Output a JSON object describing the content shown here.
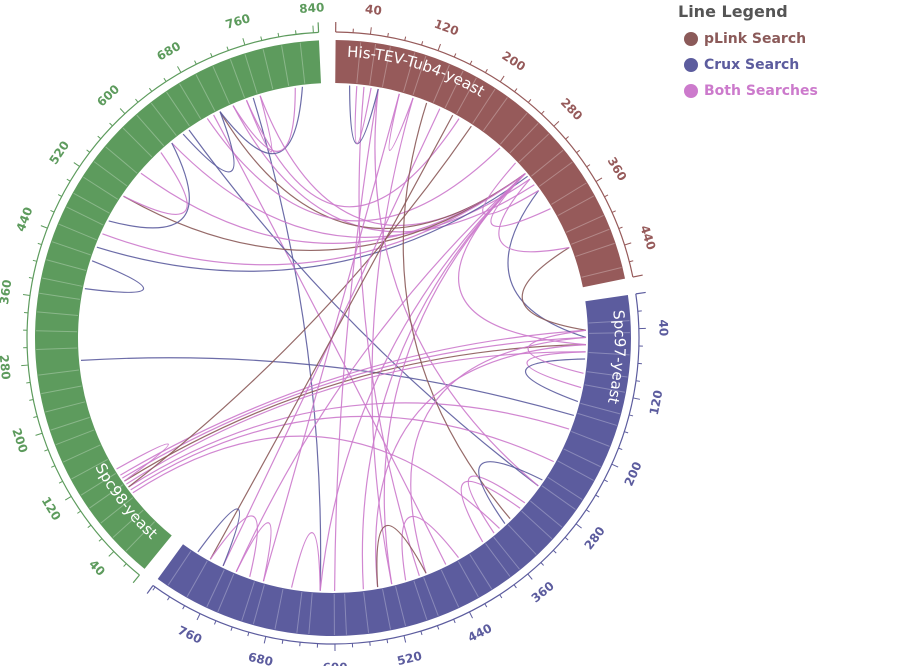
{
  "legend": {
    "title": "Line Legend",
    "items": [
      {
        "label": "pLink Search",
        "color": "#8b5a59"
      },
      {
        "label": "Crux Search",
        "color": "#5c5c9e"
      },
      {
        "label": "Both Searches",
        "color": "#cc7acc"
      }
    ]
  },
  "proteins": [
    {
      "name": "His-TEV-Tub4-yeast",
      "length": 478,
      "color": "#965a5a",
      "tick_labels": [
        "40",
        "120",
        "200",
        "280",
        "360",
        "440"
      ]
    },
    {
      "name": "Spc97-yeast",
      "length": 823,
      "color": "#5c5c9e",
      "tick_labels": [
        "40",
        "120",
        "200",
        "280",
        "360",
        "440",
        "520",
        "600",
        "680",
        "760"
      ]
    },
    {
      "name": "Spc98-yeast",
      "length": 846,
      "color": "#5d9b5d",
      "tick_labels": [
        "40",
        "120",
        "200",
        "280",
        "360",
        "440",
        "520",
        "600",
        "680",
        "760",
        "840"
      ]
    }
  ],
  "links": [
    {
      "source": [
        "Spc98-yeast",
        760
      ],
      "target": [
        "His-TEV-Tub4-yeast",
        300
      ],
      "search": "Both Searches"
    },
    {
      "source": [
        "Spc98-yeast",
        750
      ],
      "target": [
        "Spc97-yeast",
        620
      ],
      "search": "Crux Search"
    },
    {
      "source": [
        "Spc98-yeast",
        740
      ],
      "target": [
        "His-TEV-Tub4-yeast",
        180
      ],
      "search": "Both Searches"
    },
    {
      "source": [
        "Spc98-yeast",
        720
      ],
      "target": [
        "His-TEV-Tub4-yeast",
        320
      ],
      "search": "Both Searches"
    },
    {
      "source": [
        "Spc98-yeast",
        700
      ],
      "target": [
        "His-TEV-Tub4-yeast",
        300
      ],
      "search": "pLink Search"
    },
    {
      "source": [
        "Spc98-yeast",
        690
      ],
      "target": [
        "Spc97-yeast",
        440
      ],
      "search": "Both Searches"
    },
    {
      "source": [
        "Spc98-yeast",
        680
      ],
      "target": [
        "His-TEV-Tub4-yeast",
        250
      ],
      "search": "Both Searches"
    },
    {
      "source": [
        "Spc98-yeast",
        650
      ],
      "target": [
        "Spc97-yeast",
        270
      ],
      "search": "Crux Search"
    },
    {
      "source": [
        "Spc98-yeast",
        620
      ],
      "target": [
        "His-TEV-Tub4-yeast",
        310
      ],
      "search": "Both Searches"
    },
    {
      "source": [
        "Spc98-yeast",
        560
      ],
      "target": [
        "His-TEV-Tub4-yeast",
        300
      ],
      "search": "Both Searches"
    },
    {
      "source": [
        "Spc98-yeast",
        520
      ],
      "target": [
        "His-TEV-Tub4-yeast",
        300
      ],
      "search": "pLink Search"
    },
    {
      "source": [
        "Spc98-yeast",
        460
      ],
      "target": [
        "His-TEV-Tub4-yeast",
        300
      ],
      "search": "Both Searches"
    },
    {
      "source": [
        "Spc98-yeast",
        440
      ],
      "target": [
        "His-TEV-Tub4-yeast",
        305
      ],
      "search": "Crux Search"
    },
    {
      "source": [
        "Spc98-yeast",
        280
      ],
      "target": [
        "Spc97-yeast",
        160
      ],
      "search": "Crux Search"
    },
    {
      "source": [
        "Spc98-yeast",
        110
      ],
      "target": [
        "Spc97-yeast",
        40
      ],
      "search": "Both Searches"
    },
    {
      "source": [
        "Spc98-yeast",
        105
      ],
      "target": [
        "Spc97-yeast",
        50
      ],
      "search": "Both Searches"
    },
    {
      "source": [
        "Spc98-yeast",
        100
      ],
      "target": [
        "Spc97-yeast",
        60
      ],
      "search": "pLink Search"
    },
    {
      "source": [
        "Spc98-yeast",
        95
      ],
      "target": [
        "Spc97-yeast",
        70
      ],
      "search": "Both Searches"
    },
    {
      "source": [
        "Spc98-yeast",
        90
      ],
      "target": [
        "Spc97-yeast",
        180
      ],
      "search": "Both Searches"
    },
    {
      "source": [
        "Spc98-yeast",
        85
      ],
      "target": [
        "Spc97-yeast",
        230
      ],
      "search": "Both Searches"
    },
    {
      "source": [
        "Spc98-yeast",
        90
      ],
      "target": [
        "His-TEV-Tub4-yeast",
        200
      ],
      "search": "pLink Search"
    },
    {
      "source": [
        "Spc98-yeast",
        80
      ],
      "target": [
        "Spc97-yeast",
        350
      ],
      "search": "Both Searches"
    },
    {
      "source": [
        "His-TEV-Tub4-yeast",
        40
      ],
      "target": [
        "Spc97-yeast",
        480
      ],
      "search": "Both Searches"
    },
    {
      "source": [
        "His-TEV-Tub4-yeast",
        60
      ],
      "target": [
        "Spc97-yeast",
        600
      ],
      "search": "Both Searches"
    },
    {
      "source": [
        "His-TEV-Tub4-yeast",
        90
      ],
      "target": [
        "Spc97-yeast",
        700
      ],
      "search": "Both Searches"
    },
    {
      "source": [
        "His-TEV-Tub4-yeast",
        110
      ],
      "target": [
        "Spc97-yeast",
        520
      ],
      "search": "Both Searches"
    },
    {
      "source": [
        "His-TEV-Tub4-yeast",
        150
      ],
      "target": [
        "Spc97-yeast",
        760
      ],
      "search": "Both Searches"
    },
    {
      "source": [
        "His-TEV-Tub4-yeast",
        170
      ],
      "target": [
        "Spc97-yeast",
        780
      ],
      "search": "pLink Search"
    },
    {
      "source": [
        "His-TEV-Tub4-yeast",
        300
      ],
      "target": [
        "Spc97-yeast",
        520
      ],
      "search": "Both Searches"
    },
    {
      "source": [
        "His-TEV-Tub4-yeast",
        300
      ],
      "target": [
        "Spc97-yeast",
        560
      ],
      "search": "Both Searches"
    },
    {
      "source": [
        "His-TEV-Tub4-yeast",
        300
      ],
      "target": [
        "Spc97-yeast",
        620
      ],
      "search": "Both Searches"
    },
    {
      "source": [
        "His-TEV-Tub4-yeast",
        300
      ],
      "target": [
        "Spc97-yeast",
        740
      ],
      "search": "Both Searches"
    },
    {
      "source": [
        "His-TEV-Tub4-yeast",
        300
      ],
      "target": [
        "Spc97-yeast",
        60
      ],
      "search": "Both Searches"
    },
    {
      "source": [
        "His-TEV-Tub4-yeast",
        330
      ],
      "target": [
        "Spc97-yeast",
        50
      ],
      "search": "Crux Search"
    },
    {
      "source": [
        "His-TEV-Tub4-yeast",
        420
      ],
      "target": [
        "Spc97-yeast",
        40
      ],
      "search": "pLink Search"
    },
    {
      "source": [
        "His-TEV-Tub4-yeast",
        60
      ],
      "target": [
        "Spc97-yeast",
        270
      ],
      "search": "Both Searches"
    },
    {
      "source": [
        "His-TEV-Tub4-yeast",
        130
      ],
      "target": [
        "Spc97-yeast",
        330
      ],
      "search": "pLink Search"
    },
    {
      "source": [
        "Spc97-yeast",
        60
      ],
      "target": [
        "Spc97-yeast",
        540
      ],
      "search": "Both Searches"
    },
    {
      "source": [
        "Spc97-yeast",
        50
      ],
      "target": [
        "Spc97-yeast",
        470
      ],
      "search": "Both Searches"
    },
    {
      "source": [
        "Spc97-yeast",
        70
      ],
      "target": [
        "Spc97-yeast",
        120
      ],
      "search": "Both Searches"
    },
    {
      "source": [
        "Spc97-yeast",
        80
      ],
      "target": [
        "Spc97-yeast",
        140
      ],
      "search": "Crux Search"
    },
    {
      "source": [
        "Spc97-yeast",
        40
      ],
      "target": [
        "Spc97-yeast",
        100
      ],
      "search": "Both Searches"
    },
    {
      "source": [
        "Spc97-yeast",
        300
      ],
      "target": [
        "Spc97-yeast",
        360
      ],
      "search": "Both Searches"
    },
    {
      "source": [
        "Spc97-yeast",
        310
      ],
      "target": [
        "Spc97-yeast",
        380
      ],
      "search": "Both Searches"
    },
    {
      "source": [
        "Spc97-yeast",
        260
      ],
      "target": [
        "Spc97-yeast",
        340
      ],
      "search": "Crux Search"
    },
    {
      "source": [
        "Spc97-yeast",
        500
      ],
      "target": [
        "Spc97-yeast",
        420
      ],
      "search": "Both Searches"
    },
    {
      "source": [
        "Spc97-yeast",
        540
      ],
      "target": [
        "Spc97-yeast",
        470
      ],
      "search": "pLink Search"
    },
    {
      "source": [
        "Spc97-yeast",
        620
      ],
      "target": [
        "Spc97-yeast",
        660
      ],
      "search": "Both Searches"
    },
    {
      "source": [
        "Spc97-yeast",
        700
      ],
      "target": [
        "Spc97-yeast",
        740
      ],
      "search": "Both Searches"
    },
    {
      "source": [
        "Spc97-yeast",
        720
      ],
      "target": [
        "Spc97-yeast",
        780
      ],
      "search": "Both Searches"
    },
    {
      "source": [
        "Spc97-yeast",
        760
      ],
      "target": [
        "Spc97-yeast",
        800
      ],
      "search": "Crux Search"
    },
    {
      "source": [
        "Spc98-yeast",
        820
      ],
      "target": [
        "Spc98-yeast",
        700
      ],
      "search": "Crux Search"
    },
    {
      "source": [
        "Spc98-yeast",
        810
      ],
      "target": [
        "Spc98-yeast",
        720
      ],
      "search": "Both Searches"
    },
    {
      "source": [
        "Spc98-yeast",
        740
      ],
      "target": [
        "Spc98-yeast",
        760
      ],
      "search": "Both Searches"
    },
    {
      "source": [
        "Spc98-yeast",
        700
      ],
      "target": [
        "Spc98-yeast",
        640
      ],
      "search": "Crux Search"
    },
    {
      "source": [
        "Spc98-yeast",
        620
      ],
      "target": [
        "Spc98-yeast",
        480
      ],
      "search": "Crux Search"
    },
    {
      "source": [
        "Spc98-yeast",
        600
      ],
      "target": [
        "Spc98-yeast",
        520
      ],
      "search": "Both Searches"
    },
    {
      "source": [
        "Spc98-yeast",
        420
      ],
      "target": [
        "Spc98-yeast",
        380
      ],
      "search": "Crux Search"
    },
    {
      "source": [
        "Spc98-yeast",
        120
      ],
      "target": [
        "Spc98-yeast",
        100
      ],
      "search": "Both Searches"
    },
    {
      "source": [
        "His-TEV-Tub4-yeast",
        280
      ],
      "target": [
        "His-TEV-Tub4-yeast",
        330
      ],
      "search": "Both Searches"
    },
    {
      "source": [
        "His-TEV-Tub4-yeast",
        300
      ],
      "target": [
        "His-TEV-Tub4-yeast",
        360
      ],
      "search": "Both Searches"
    },
    {
      "source": [
        "His-TEV-Tub4-yeast",
        310
      ],
      "target": [
        "His-TEV-Tub4-yeast",
        420
      ],
      "search": "Both Searches"
    },
    {
      "source": [
        "His-TEV-Tub4-yeast",
        20
      ],
      "target": [
        "His-TEV-Tub4-yeast",
        60
      ],
      "search": "Crux Search"
    },
    {
      "source": [
        "His-TEV-Tub4-yeast",
        30
      ],
      "target": [
        "His-TEV-Tub4-yeast",
        50
      ],
      "search": "Both Searches"
    },
    {
      "source": [
        "His-TEV-Tub4-yeast",
        90
      ],
      "target": [
        "His-TEV-Tub4-yeast",
        110
      ],
      "search": "Both Searches"
    }
  ]
}
